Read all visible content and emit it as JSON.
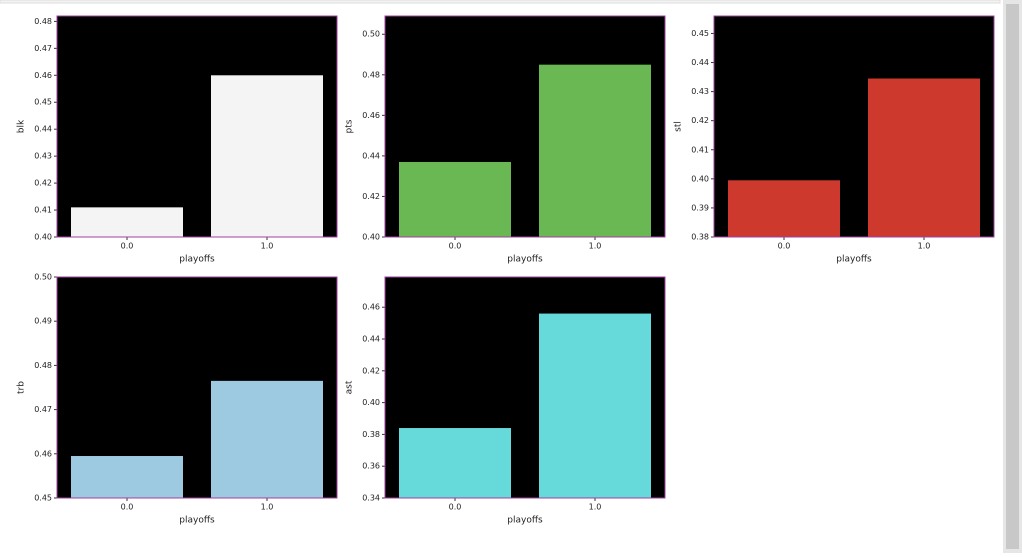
{
  "chart_data": [
    {
      "type": "bar",
      "categories": [
        "0.0",
        "1.0"
      ],
      "values": [
        0.411,
        0.46
      ],
      "color": "#f4f4f4",
      "xlabel": "playoffs",
      "ylabel": "blk",
      "ylim": [
        0.4,
        0.482
      ],
      "yticks": [
        {
          "value": 0.4,
          "label": "0.40"
        },
        {
          "value": 0.41,
          "label": "0.41"
        },
        {
          "value": 0.42,
          "label": "0.42"
        },
        {
          "value": 0.43,
          "label": "0.43"
        },
        {
          "value": 0.44,
          "label": "0.44"
        },
        {
          "value": 0.45,
          "label": "0.45"
        },
        {
          "value": 0.46,
          "label": "0.46"
        },
        {
          "value": 0.47,
          "label": "0.47"
        },
        {
          "value": 0.48,
          "label": "0.48"
        }
      ]
    },
    {
      "type": "bar",
      "categories": [
        "0.0",
        "1.0"
      ],
      "values": [
        0.437,
        0.485
      ],
      "color": "#6ab853",
      "xlabel": "playoffs",
      "ylabel": "pts",
      "ylim": [
        0.4,
        0.509
      ],
      "yticks": [
        {
          "value": 0.4,
          "label": "0.40"
        },
        {
          "value": 0.42,
          "label": "0.42"
        },
        {
          "value": 0.44,
          "label": "0.44"
        },
        {
          "value": 0.46,
          "label": "0.46"
        },
        {
          "value": 0.48,
          "label": "0.48"
        },
        {
          "value": 0.5,
          "label": "0.50"
        }
      ]
    },
    {
      "type": "bar",
      "categories": [
        "0.0",
        "1.0"
      ],
      "values": [
        0.3995,
        0.4345
      ],
      "color": "#cd3a2d",
      "xlabel": "playoffs",
      "ylabel": "stl",
      "ylim": [
        0.38,
        0.456
      ],
      "yticks": [
        {
          "value": 0.38,
          "label": "0.38"
        },
        {
          "value": 0.39,
          "label": "0.39"
        },
        {
          "value": 0.4,
          "label": "0.40"
        },
        {
          "value": 0.41,
          "label": "0.41"
        },
        {
          "value": 0.42,
          "label": "0.42"
        },
        {
          "value": 0.43,
          "label": "0.43"
        },
        {
          "value": 0.44,
          "label": "0.44"
        },
        {
          "value": 0.45,
          "label": "0.45"
        }
      ]
    },
    {
      "type": "bar",
      "categories": [
        "0.0",
        "1.0"
      ],
      "values": [
        0.4595,
        0.4765
      ],
      "color": "#9ecae1",
      "xlabel": "playoffs",
      "ylabel": "trb",
      "ylim": [
        0.45,
        0.5
      ],
      "yticks": [
        {
          "value": 0.45,
          "label": "0.45"
        },
        {
          "value": 0.46,
          "label": "0.46"
        },
        {
          "value": 0.47,
          "label": "0.47"
        },
        {
          "value": 0.48,
          "label": "0.48"
        },
        {
          "value": 0.49,
          "label": "0.49"
        },
        {
          "value": 0.5,
          "label": "0.50"
        }
      ]
    },
    {
      "type": "bar",
      "categories": [
        "0.0",
        "1.0"
      ],
      "values": [
        0.384,
        0.456
      ],
      "color": "#66dada",
      "xlabel": "playoffs",
      "ylabel": "ast",
      "ylim": [
        0.34,
        0.479
      ],
      "yticks": [
        {
          "value": 0.34,
          "label": "0.34"
        },
        {
          "value": 0.36,
          "label": "0.36"
        },
        {
          "value": 0.38,
          "label": "0.38"
        },
        {
          "value": 0.4,
          "label": "0.40"
        },
        {
          "value": 0.42,
          "label": "0.42"
        },
        {
          "value": 0.44,
          "label": "0.44"
        },
        {
          "value": 0.46,
          "label": "0.46"
        }
      ]
    }
  ]
}
